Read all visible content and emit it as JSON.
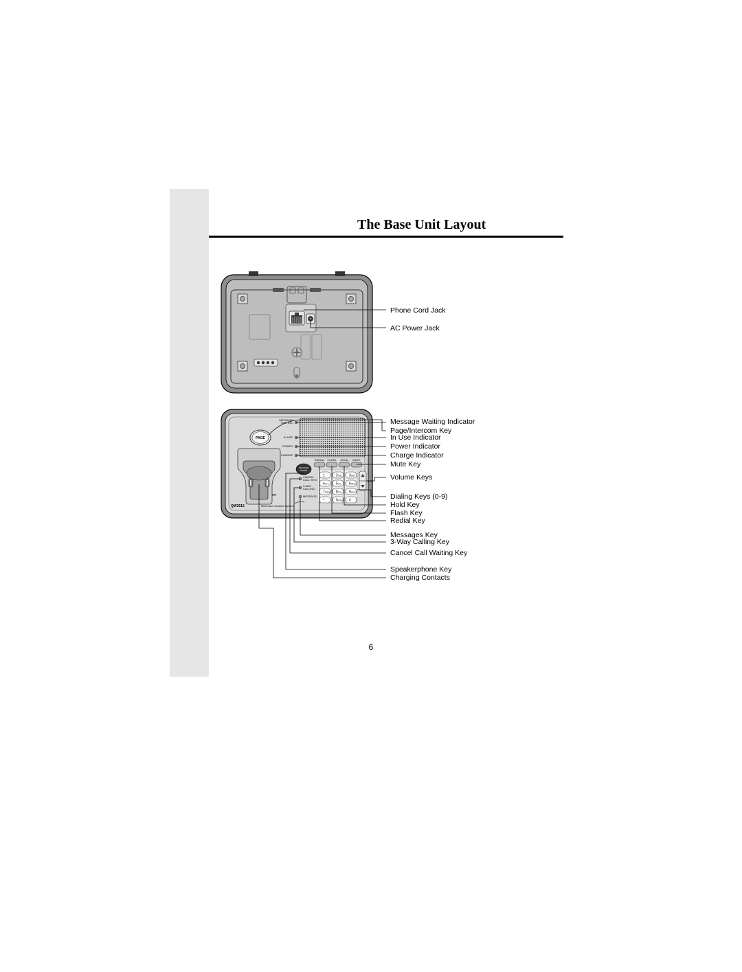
{
  "title": "The Base Unit Layout",
  "page_number": "6",
  "back_labels": {
    "phone_cord": "Phone Cord Jack",
    "ac_power": "AC Power Jack"
  },
  "front_labels": {
    "msg_wait": "Message Waiting Indicator",
    "page_intercom": "Page/Intercom Key",
    "in_use": "In Use Indicator",
    "power": "Power Indicator",
    "charge": "Charge Indicator",
    "mute": "Mute Key",
    "volume": "Volume Keys",
    "dialing": "Dialing Keys (0-9)",
    "hold": "Hold Key",
    "flash": "Flash Key",
    "redial": "Redial Key",
    "messages": "Messages Key",
    "threeway": "3-Way Calling Key",
    "cancel_cw": "Cancel Call Waiting Key",
    "speaker": "Speakerphone Key",
    "charging_contacts": "Charging Contacts"
  },
  "device": {
    "brand": "Qwest.",
    "model": "QW2512",
    "system": "Multi-Line Handset System",
    "page_btn": "PAGE",
    "speaker_btn": "SPEAKER\\nPHONE",
    "func_row": [
      "REDIAL",
      "FLASH",
      "HOLD",
      "MUTE"
    ],
    "side_btns": [
      "CANCEL\\nCALL WTG",
      "3-WAY\\nCALLING",
      "MESSAGES"
    ],
    "ind": [
      "MESSAGE\\nWAITING",
      "IN USE",
      "POWER",
      "CHARGE"
    ],
    "vol": "VOL",
    "keys": [
      [
        "1",
        ""
      ],
      [
        "2",
        "ABC"
      ],
      [
        "3",
        "DEF"
      ],
      [
        "4",
        "GHI"
      ],
      [
        "5",
        "JKL"
      ],
      [
        "6",
        "MNO"
      ],
      [
        "7",
        "PQRS"
      ],
      [
        "8",
        "TUV"
      ],
      [
        "9",
        "WXYZ"
      ],
      [
        "*",
        ""
      ],
      [
        "0",
        "OPER"
      ],
      [
        "#",
        ""
      ]
    ]
  },
  "colors": {
    "device_body": "#8d8d8d",
    "device_inner": "#bdbdbd",
    "device_light": "#d9d9d9",
    "line": "#000000",
    "screw": "#a8a8a8",
    "jack": "#3b3b3b",
    "speaker_grill": "#4a4a4a",
    "keypad_bg": "#f0f0f0",
    "white": "#ffffff"
  }
}
